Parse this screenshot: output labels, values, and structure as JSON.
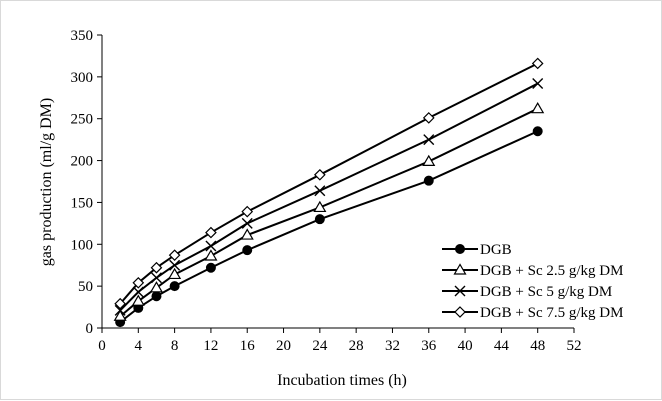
{
  "chart_data": {
    "type": "line",
    "title": "",
    "xlabel": "Incubation times (h)",
    "ylabel": "gas production (ml/g DM)",
    "xlim": [
      0,
      52
    ],
    "ylim": [
      0,
      350
    ],
    "xticks": [
      0,
      4,
      8,
      12,
      16,
      20,
      24,
      28,
      32,
      36,
      40,
      44,
      48,
      52
    ],
    "yticks": [
      0,
      50,
      100,
      150,
      200,
      250,
      300,
      350
    ],
    "grid": false,
    "legend_position": "right",
    "x": [
      2,
      4,
      6,
      8,
      12,
      16,
      24,
      36,
      48
    ],
    "series": [
      {
        "name": "DGB",
        "marker": "filled-circle",
        "color": "#000000",
        "values": [
          7,
          24,
          38,
          50,
          72,
          93,
          130,
          176,
          235
        ]
      },
      {
        "name": "DGB + Sc 2.5 g/kg DM",
        "marker": "open-triangle",
        "color": "#000000",
        "values": [
          14,
          32,
          48,
          64,
          86,
          111,
          144,
          199,
          262
        ]
      },
      {
        "name": "DGB + Sc 5 g/kg DM",
        "marker": "cross",
        "color": "#000000",
        "values": [
          21,
          43,
          60,
          75,
          98,
          125,
          164,
          225,
          292
        ]
      },
      {
        "name": "DGB + Sc 7.5 g/kg DM",
        "marker": "open-diamond",
        "color": "#000000",
        "values": [
          29,
          54,
          72,
          87,
          114,
          139,
          183,
          251,
          316
        ]
      }
    ]
  }
}
